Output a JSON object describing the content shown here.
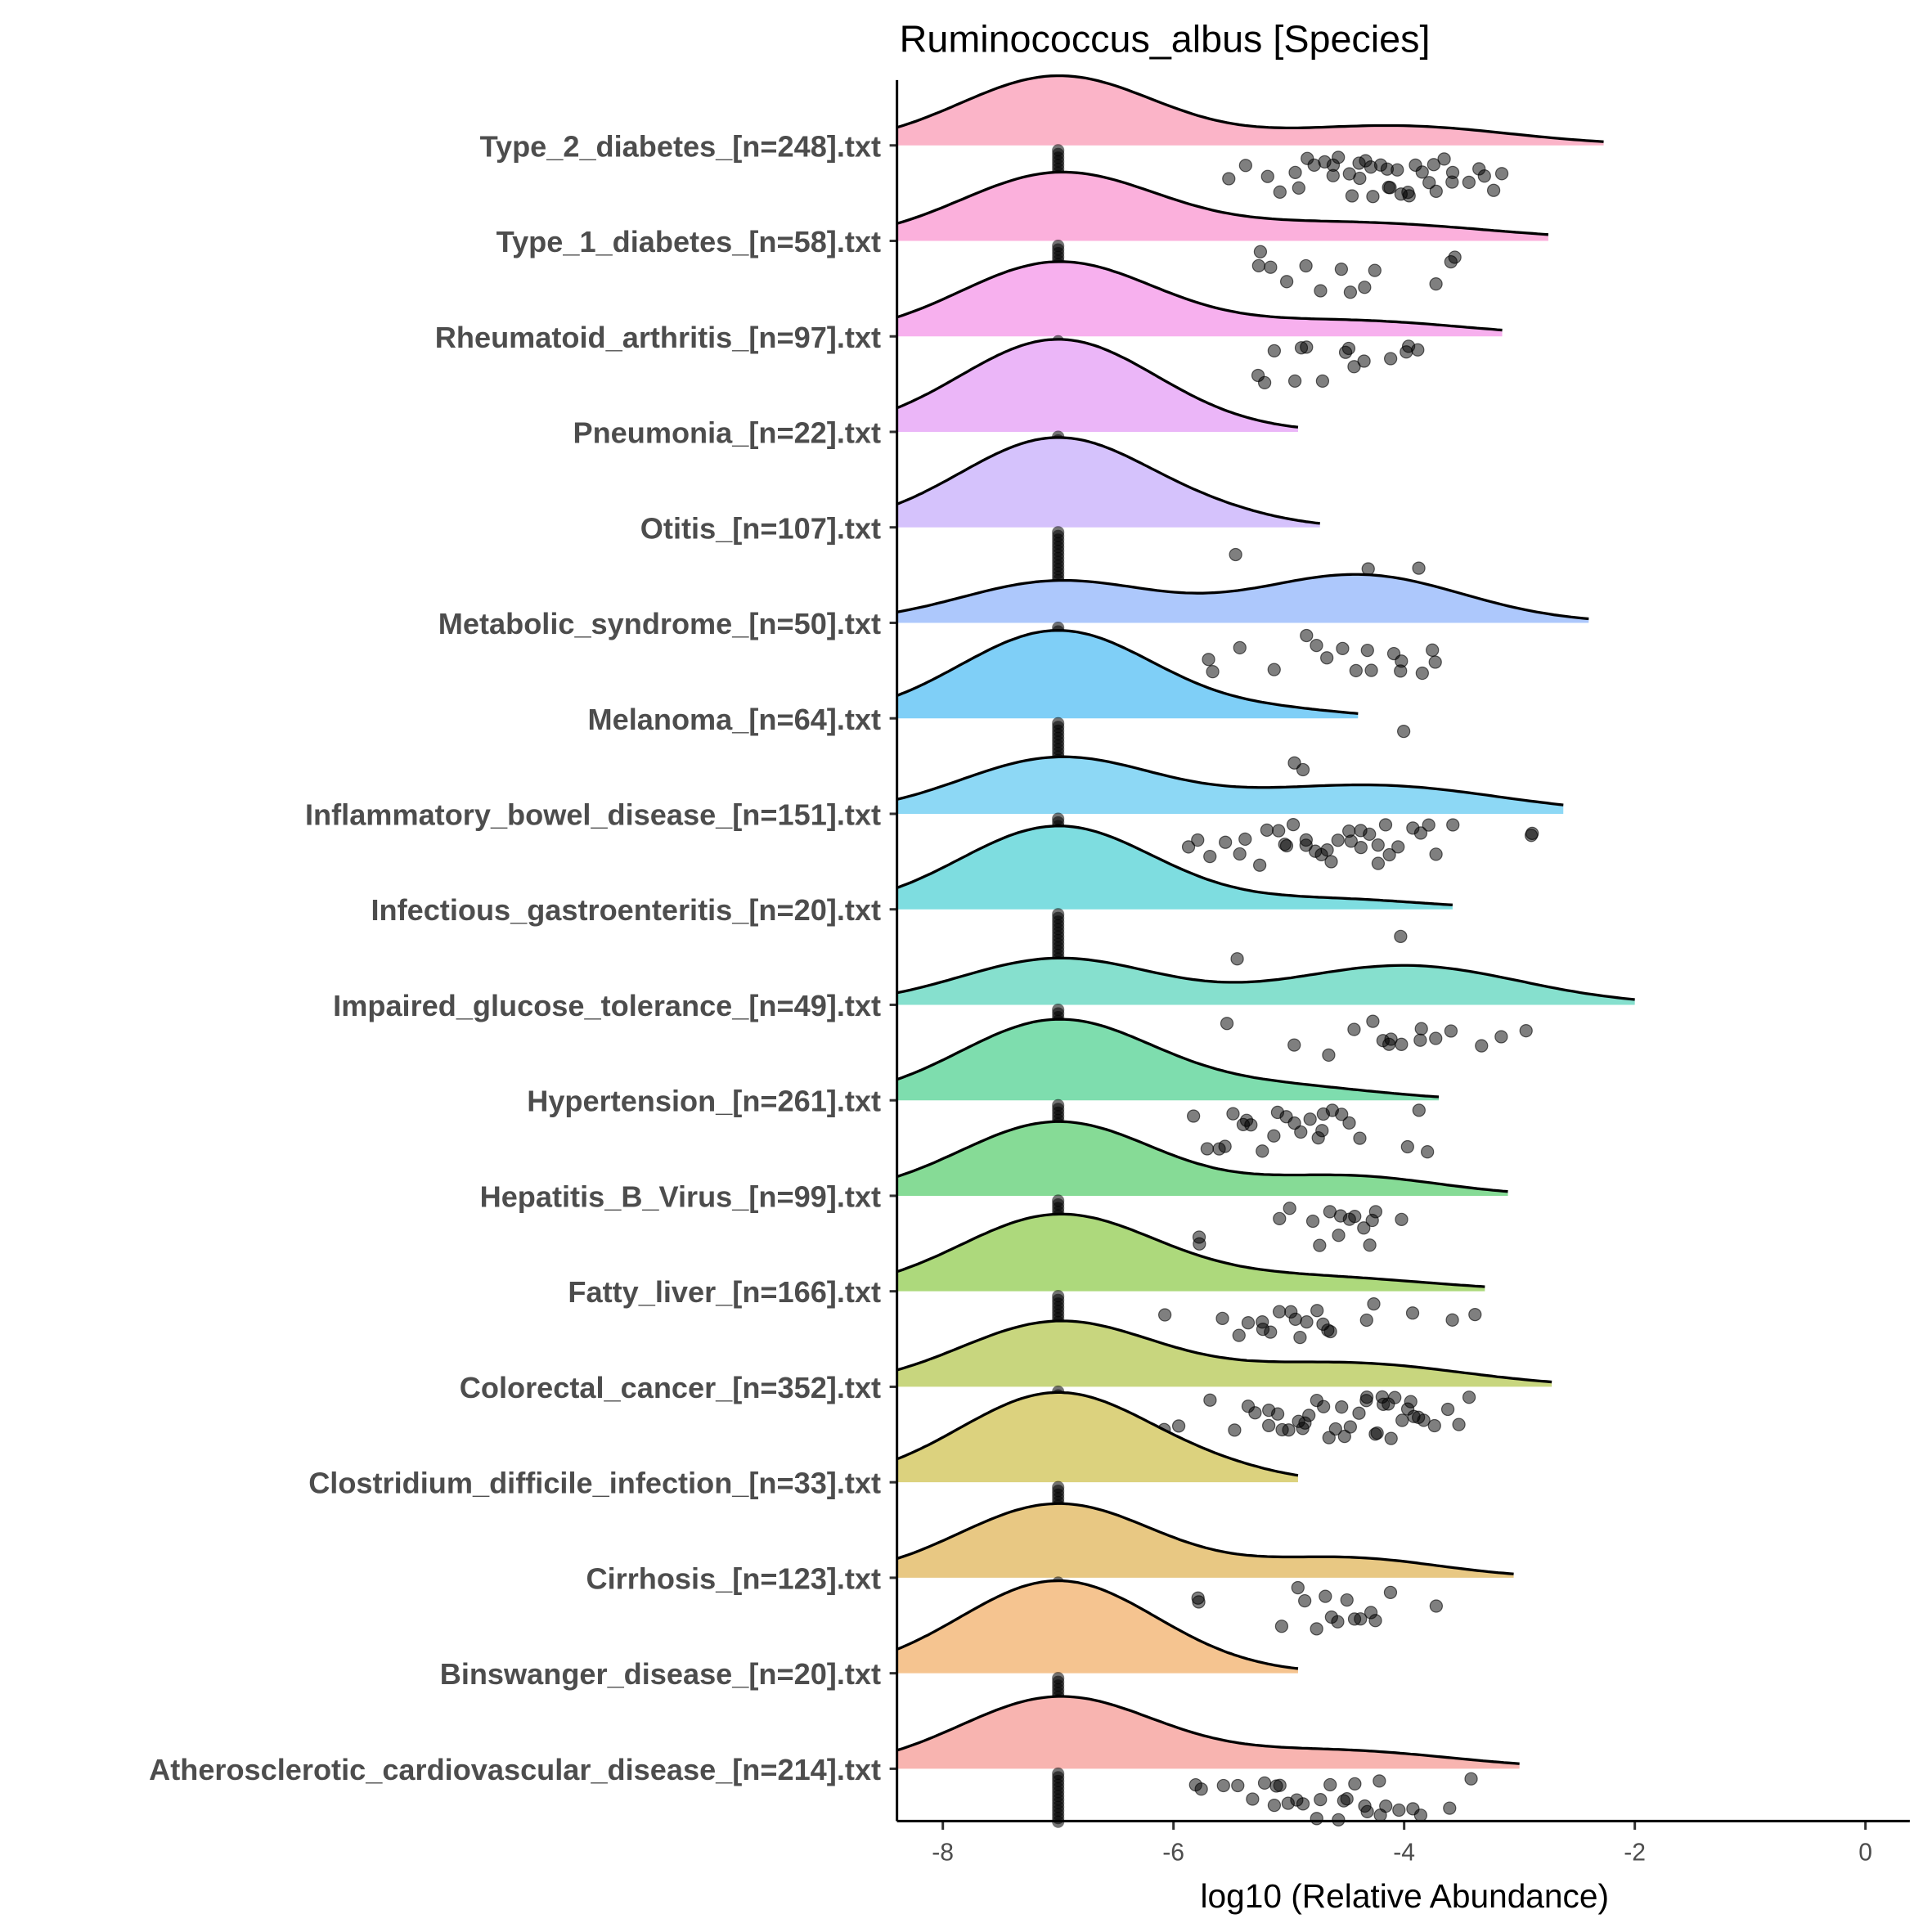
{
  "chart_data": {
    "type": "ridgeline-raincloud",
    "title": "Ruminococcus_albus [Species]",
    "xlabel": "log10 (Relative Abundance)",
    "ylabel": "",
    "xlim": [
      -8.39,
      0.38
    ],
    "xticks": [
      -8,
      -6,
      -4,
      -2,
      0
    ],
    "zero_value": -7,
    "grid": false,
    "groups": [
      {
        "label": "Type_2_diabetes_[n=248].txt",
        "color": "#FBB4C8",
        "end": -2.27,
        "mix": [
          [
            -7,
            0.75,
            0.85
          ],
          [
            -4.1,
            0.25,
            1.0
          ]
        ],
        "points": [
          -5.52,
          -5.35,
          -5.18,
          -5.05,
          -4.95,
          -4.9,
          -4.85,
          -4.78,
          -4.7,
          -4.62,
          -4.55,
          -4.48,
          -4.45,
          -4.42,
          -4.38,
          -4.3,
          -4.25,
          -4.2,
          -4.15,
          -4.1,
          -4.05,
          -4.0,
          -3.95,
          -3.9,
          -3.85,
          -3.8,
          -3.72,
          -3.65,
          -3.55,
          -3.45,
          -3.38,
          -3.3,
          -3.22,
          -3.15,
          -4.6,
          -4.35,
          -4.12,
          -3.98,
          -3.75,
          -3.6
        ]
      },
      {
        "label": "Type_1_diabetes_[n=58].txt",
        "color": "#FBB0DC",
        "end": -2.75,
        "mix": [
          [
            -7,
            0.72,
            0.85
          ],
          [
            -4.5,
            0.28,
            1.2
          ]
        ],
        "points": [
          -5.25,
          -5.25,
          -5.14,
          -5.03,
          -4.71,
          -4.82,
          -4.55,
          -4.44,
          -4.34,
          -4.26,
          -3.7,
          -3.62,
          -3.53
        ]
      },
      {
        "label": "Rheumatoid_arthritis_[n=97].txt",
        "color": "#F7B0EE",
        "end": -3.15,
        "mix": [
          [
            -7,
            0.8,
            0.85
          ],
          [
            -4.5,
            0.2,
            1.0
          ]
        ],
        "points": [
          -5.28,
          -5.22,
          -4.93,
          -4.87,
          -4.82,
          -4.71,
          -4.53,
          -4.48,
          -4.42,
          -4.32,
          -4.1,
          -4.0,
          -3.94,
          -3.89,
          -5.12
        ]
      },
      {
        "label": "Pneumonia_[n=22].txt",
        "color": "#EBB6F8",
        "end": -4.92,
        "mix": [
          [
            -7,
            1.0,
            0.85
          ]
        ],
        "points": []
      },
      {
        "label": "Otitis_[n=107].txt",
        "color": "#D5C2FC",
        "end": -4.73,
        "mix": [
          [
            -7,
            0.97,
            0.85
          ],
          [
            -5.5,
            0.03,
            0.5
          ]
        ],
        "points": [
          -5.46,
          -4.28,
          -3.87
        ]
      },
      {
        "label": "Metabolic_syndrome_[n=50].txt",
        "color": "#ADC8FC",
        "end": -2.4,
        "mix": [
          [
            -7,
            0.45,
            0.85
          ],
          [
            -4.4,
            0.55,
            0.9
          ]
        ],
        "points": [
          -5.65,
          -5.71,
          -5.41,
          -5.1,
          -4.82,
          -4.74,
          -4.64,
          -4.53,
          -4.42,
          -4.32,
          -4.26,
          -4.1,
          -4.05,
          -3.84,
          -3.78,
          -3.73,
          -4.05
        ]
      },
      {
        "label": "Melanoma_[n=64].txt",
        "color": "#7FCFF7",
        "end": -4.4,
        "mix": [
          [
            -7,
            0.95,
            0.85
          ],
          [
            -5,
            0.05,
            0.6
          ]
        ],
        "points": [
          -4.88,
          -4.96,
          -4.0
        ]
      },
      {
        "label": "Inflammatory_bowel_disease_[n=151].txt",
        "color": "#8DD8F5",
        "end": -2.62,
        "mix": [
          [
            -7,
            0.6,
            0.85
          ],
          [
            -4.3,
            0.4,
            1.1
          ]
        ],
        "points": [
          -5.9,
          -5.8,
          -5.7,
          -5.55,
          -5.45,
          -5.35,
          -5.25,
          -5.2,
          -5.1,
          -5.0,
          -4.95,
          -4.88,
          -4.82,
          -4.75,
          -4.7,
          -4.62,
          -4.58,
          -4.5,
          -4.45,
          -4.4,
          -4.35,
          -4.3,
          -4.22,
          -4.15,
          -4.1,
          -4.05,
          -3.95,
          -3.85,
          -3.78,
          -3.7,
          -3.6,
          -2.9,
          -2.88,
          -5.05,
          -4.65,
          -4.25
        ]
      },
      {
        "label": "Infectious_gastroenteritis_[n=20].txt",
        "color": "#7EDDE0",
        "end": -3.58,
        "mix": [
          [
            -7,
            0.9,
            0.85
          ],
          [
            -4.6,
            0.1,
            0.8
          ]
        ],
        "points": [
          -5.44,
          -4.05
        ]
      },
      {
        "label": "Impaired_glucose_tolerance_[n=49].txt",
        "color": "#86E0CE",
        "end": -2.0,
        "mix": [
          [
            -7,
            0.5,
            0.85
          ],
          [
            -4.0,
            0.5,
            1.0
          ]
        ],
        "points": [
          -5.51,
          -4.93,
          -4.66,
          -4.42,
          -4.26,
          -4.21,
          -4.15,
          -4.1,
          -4.0,
          -3.89,
          -3.84,
          -3.73,
          -3.57,
          -3.35,
          -3.16,
          -2.95
        ]
      },
      {
        "label": "Hypertension_[n=261].txt",
        "color": "#7EDDAE",
        "end": -3.7,
        "mix": [
          [
            -7,
            0.87,
            0.85
          ],
          [
            -5,
            0.13,
            0.8
          ]
        ],
        "points": [
          -5.8,
          -5.7,
          -5.62,
          -5.55,
          -5.48,
          -5.42,
          -5.35,
          -5.3,
          -5.22,
          -5.15,
          -5.1,
          -5.02,
          -4.95,
          -4.88,
          -4.82,
          -4.75,
          -4.7,
          -4.68,
          -4.62,
          -4.55,
          -4.45,
          -4.38,
          -4.0,
          -3.85,
          -3.82
        ]
      },
      {
        "label": "Hepatitis_B_Virus_[n=99].txt",
        "color": "#86DB96",
        "end": -3.1,
        "mix": [
          [
            -7,
            0.8,
            0.85
          ],
          [
            -4.5,
            0.2,
            0.8
          ]
        ],
        "points": [
          -5.8,
          -5.78,
          -5.05,
          -5.0,
          -4.8,
          -4.72,
          -4.65,
          -4.58,
          -4.52,
          -4.45,
          -4.4,
          -4.35,
          -4.3,
          -4.25,
          -4.22,
          -4.0
        ]
      },
      {
        "label": "Fatty_liver_[n=166].txt",
        "color": "#ADD97C",
        "end": -3.3,
        "mix": [
          [
            -7,
            0.82,
            0.85
          ],
          [
            -4.8,
            0.18,
            1.0
          ]
        ],
        "points": [
          -6.05,
          -5.55,
          -5.42,
          -5.35,
          -5.25,
          -5.15,
          -5.08,
          -5.0,
          -4.95,
          -4.9,
          -4.82,
          -4.75,
          -4.68,
          -4.62,
          -4.3,
          -4.28,
          -3.92,
          -3.55,
          -3.4,
          -5.2,
          -4.7
        ]
      },
      {
        "label": "Colorectal_cancer_[n=352].txt",
        "color": "#C8D67E",
        "end": -2.72,
        "mix": [
          [
            -7,
            0.7,
            0.85
          ],
          [
            -4.5,
            0.3,
            1.0
          ]
        ],
        "points": [
          -6.05,
          -5.95,
          -5.7,
          -5.5,
          -5.38,
          -5.28,
          -5.2,
          -5.12,
          -5.05,
          -4.98,
          -4.92,
          -4.85,
          -4.8,
          -4.75,
          -4.7,
          -4.62,
          -4.55,
          -4.5,
          -4.45,
          -4.4,
          -4.35,
          -4.3,
          -4.25,
          -4.2,
          -4.15,
          -4.1,
          -4.05,
          -4.0,
          -3.95,
          -3.9,
          -3.85,
          -3.8,
          -3.75,
          -3.65,
          -3.55,
          -3.45,
          -5.15,
          -4.88,
          -4.6,
          -4.28,
          -4.12,
          -3.98
        ]
      },
      {
        "label": "Clostridium_difficile_infection_[n=33].txt",
        "color": "#DCD27E",
        "end": -4.92,
        "mix": [
          [
            -7,
            0.97,
            0.85
          ],
          [
            -5.5,
            0.03,
            0.5
          ]
        ],
        "points": []
      },
      {
        "label": "Cirrhosis_[n=123].txt",
        "color": "#E8C883",
        "end": -3.05,
        "mix": [
          [
            -7,
            0.8,
            0.85
          ],
          [
            -4.5,
            0.2,
            0.8
          ]
        ],
        "points": [
          -5.8,
          -5.78,
          -5.05,
          -4.95,
          -4.85,
          -4.78,
          -4.7,
          -4.62,
          -4.58,
          -4.5,
          -4.45,
          -4.4,
          -4.3,
          -4.22,
          -4.15,
          -3.72
        ]
      },
      {
        "label": "Binswanger_disease_[n=20].txt",
        "color": "#F5C490",
        "end": -4.92,
        "mix": [
          [
            -7,
            1.0,
            0.85
          ]
        ],
        "points": []
      },
      {
        "label": "Atherosclerotic_cardiovascular_disease_[n=214].txt",
        "color": "#F8B4B0",
        "end": -3.0,
        "mix": [
          [
            -7,
            0.77,
            0.85
          ],
          [
            -4.6,
            0.23,
            1.0
          ]
        ],
        "points": [
          -5.8,
          -5.75,
          -5.55,
          -5.42,
          -5.3,
          -5.2,
          -5.12,
          -5.05,
          -4.98,
          -4.92,
          -4.85,
          -4.78,
          -4.72,
          -4.65,
          -4.55,
          -4.48,
          -4.4,
          -4.35,
          -4.3,
          -4.22,
          -4.15,
          -4.05,
          -3.95,
          -3.85,
          -3.62,
          -3.45,
          -5.1,
          -4.6,
          -4.2
        ]
      }
    ]
  }
}
